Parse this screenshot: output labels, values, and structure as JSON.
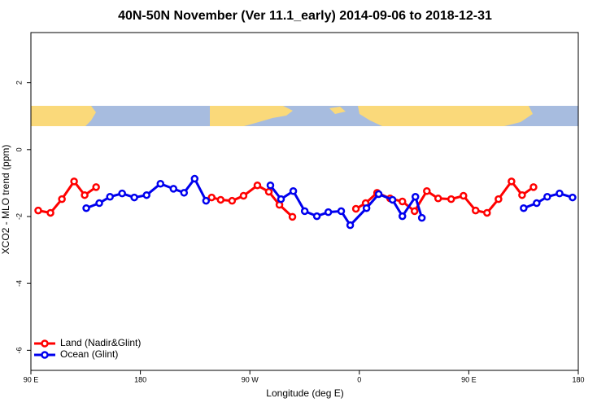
{
  "chart_data": {
    "type": "line",
    "title": "40N-50N November (Ver 11.1_early)   2014-09-06 to 2018-12-31",
    "x_label": "Longitude (deg E)",
    "y_label": "XCO2 - MLO trend (ppm)",
    "xlim": [
      90,
      540
    ],
    "ylim": [
      -6.6,
      3.5
    ],
    "xticks": [
      {
        "value": 90,
        "label": "90 E"
      },
      {
        "value": 180,
        "label": "180"
      },
      {
        "value": 270,
        "label": "90 W"
      },
      {
        "value": 360,
        "label": "0"
      },
      {
        "value": 450,
        "label": "90 E"
      },
      {
        "value": 540,
        "label": "180"
      }
    ],
    "yticks": [
      2,
      0,
      -2,
      -4,
      -6
    ],
    "legend": "bottom-left",
    "series": [
      {
        "name": "Land (Nadir&Glint)",
        "color": "#ff0000",
        "x": [
          96.0,
          106.1,
          115.5,
          125.5,
          134.2,
          143.6,
          null,
          238.6,
          246.0,
          255.4,
          264.8,
          276.2,
          285.6,
          294.3,
          305.0,
          null,
          357.2,
          365.2,
          374.6,
          385.3,
          395.4,
          405.4,
          415.5,
          424.8,
          435.5,
          445.6,
          455.6,
          465.0,
          474.4,
          485.1,
          493.8,
          503.2
        ],
        "values": [
          -1.82,
          -1.89,
          -1.48,
          -0.95,
          -1.36,
          -1.12,
          null,
          -1.43,
          -1.5,
          -1.53,
          -1.38,
          -1.07,
          -1.26,
          -1.65,
          -2.01,
          null,
          -1.77,
          -1.6,
          -1.29,
          -1.46,
          -1.55,
          -1.84,
          -1.24,
          -1.46,
          -1.48,
          -1.38,
          -1.82,
          -1.89,
          -1.48,
          -0.95,
          -1.36,
          -1.12
        ]
      },
      {
        "name": "Ocean (Glint)",
        "color": "#0000ee",
        "x": [
          135.5,
          146.2,
          155.0,
          165.0,
          175.0,
          185.1,
          196.5,
          207.2,
          215.9,
          224.6,
          234.0,
          null,
          286.9,
          295.6,
          305.7,
          315.1,
          325.1,
          334.5,
          345.1,
          352.5,
          365.9,
          375.9,
          387.3,
          395.4,
          406.1,
          411.4,
          null,
          495.1,
          505.8,
          514.5,
          524.6,
          535.3
        ],
        "values": [
          -1.75,
          -1.6,
          -1.41,
          -1.31,
          -1.43,
          -1.36,
          -1.02,
          -1.17,
          -1.29,
          -0.87,
          -1.53,
          null,
          -1.07,
          -1.48,
          -1.24,
          -1.84,
          -1.99,
          -1.87,
          -1.84,
          -2.26,
          -1.75,
          -1.33,
          -1.5,
          -1.99,
          -1.41,
          -2.04,
          null,
          -1.75,
          -1.6,
          -1.41,
          -1.31,
          -1.43
        ]
      }
    ]
  }
}
